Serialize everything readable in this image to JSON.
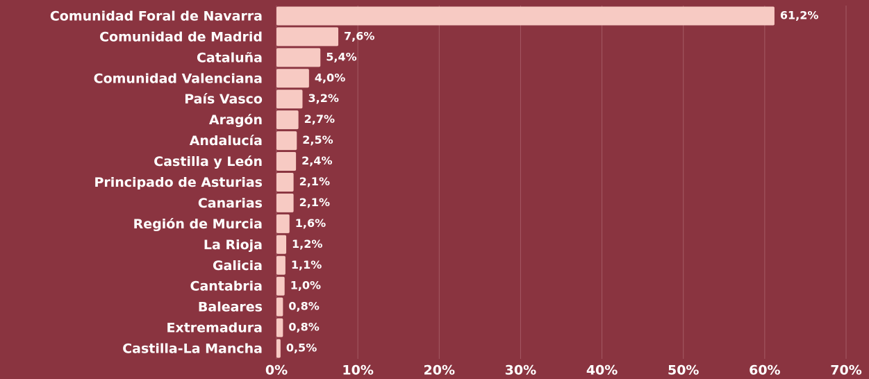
{
  "chart_data": {
    "type": "barh",
    "categories": [
      "Comunidad Foral de Navarra",
      "Comunidad de Madrid",
      "Cataluña",
      "Comunidad Valenciana",
      "País Vasco",
      "Aragón",
      "Andalucía",
      "Castilla y León",
      "Principado de Asturias",
      "Canarias",
      "Región de Murcia",
      "La Rioja",
      "Galicia",
      "Cantabria",
      "Baleares",
      "Extremadura",
      "Castilla-La Mancha"
    ],
    "values": [
      61.2,
      7.6,
      5.4,
      4.0,
      3.2,
      2.7,
      2.5,
      2.4,
      2.1,
      2.1,
      1.6,
      1.2,
      1.1,
      1.0,
      0.8,
      0.8,
      0.5
    ],
    "value_labels": [
      "61,2%",
      "7,6%",
      "5,4%",
      "4,0%",
      "3,2%",
      "2,7%",
      "2,5%",
      "2,4%",
      "2,1%",
      "2,1%",
      "1,6%",
      "1,2%",
      "1,1%",
      "1,0%",
      "0,8%",
      "0,8%",
      "0,5%"
    ],
    "color": "#f7cac3",
    "xlim": [
      0,
      70
    ],
    "xticks": [
      {
        "value": 0,
        "label": "0%"
      },
      {
        "value": 10,
        "label": "10%"
      },
      {
        "value": 20,
        "label": "20%"
      },
      {
        "value": 30,
        "label": "30%"
      },
      {
        "value": 40,
        "label": "40%"
      },
      {
        "value": 50,
        "label": "50%"
      },
      {
        "value": 60,
        "label": "60%"
      },
      {
        "value": 70,
        "label": "70%"
      }
    ],
    "grid": true
  }
}
